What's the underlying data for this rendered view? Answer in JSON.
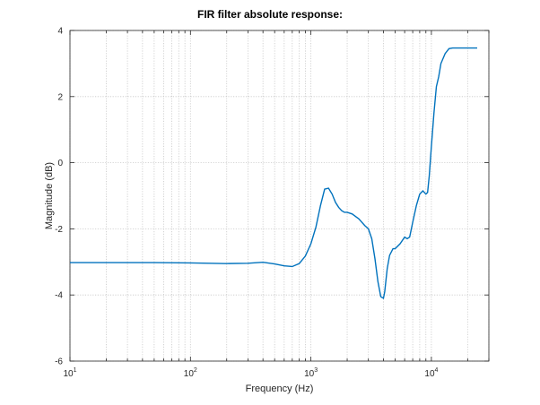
{
  "chart_data": {
    "type": "line",
    "title": "FIR filter absolute response:",
    "xlabel": "Frequency (Hz)",
    "ylabel": "Magnitude (dB)",
    "xscale": "log",
    "xlim": [
      10,
      30000
    ],
    "ylim": [
      -6,
      4
    ],
    "grid": true,
    "x_ticks": [
      {
        "base": "10",
        "exp": "1",
        "value": 10
      },
      {
        "base": "10",
        "exp": "2",
        "value": 100
      },
      {
        "base": "10",
        "exp": "3",
        "value": 1000
      },
      {
        "base": "10",
        "exp": "4",
        "value": 10000
      }
    ],
    "y_ticks": [
      {
        "label": "-6",
        "value": -6
      },
      {
        "label": "-4",
        "value": -4
      },
      {
        "label": "-2",
        "value": -2
      },
      {
        "label": "0",
        "value": 0
      },
      {
        "label": "2",
        "value": 2
      },
      {
        "label": "4",
        "value": 4
      }
    ],
    "series": [
      {
        "color": "#0072BD",
        "x": [
          10,
          50,
          100,
          200,
          300,
          400,
          500,
          600,
          700,
          800,
          900,
          1000,
          1100,
          1200,
          1300,
          1400,
          1500,
          1600,
          1700,
          1800,
          1900,
          2000,
          2200,
          2500,
          2800,
          3000,
          3200,
          3400,
          3600,
          3800,
          4000,
          4100,
          4300,
          4500,
          4800,
          5000,
          5500,
          6000,
          6300,
          6600,
          7000,
          7500,
          8000,
          8500,
          9000,
          9300,
          9600,
          10000,
          10500,
          11000,
          11500,
          12000,
          13000,
          14000,
          15000,
          17000,
          20000,
          24000
        ],
        "y": [
          -3.02,
          -3.02,
          -3.03,
          -3.05,
          -3.04,
          -3.01,
          -3.06,
          -3.12,
          -3.14,
          -3.05,
          -2.82,
          -2.45,
          -1.95,
          -1.3,
          -0.8,
          -0.77,
          -0.95,
          -1.2,
          -1.35,
          -1.45,
          -1.5,
          -1.5,
          -1.55,
          -1.7,
          -1.9,
          -2.0,
          -2.3,
          -2.9,
          -3.6,
          -4.05,
          -4.1,
          -3.9,
          -3.2,
          -2.8,
          -2.6,
          -2.6,
          -2.45,
          -2.25,
          -2.3,
          -2.25,
          -1.8,
          -1.3,
          -0.95,
          -0.85,
          -0.95,
          -0.9,
          -0.4,
          0.5,
          1.5,
          2.3,
          2.6,
          3.0,
          3.3,
          3.45,
          3.47,
          3.47,
          3.47,
          3.47
        ]
      }
    ]
  }
}
